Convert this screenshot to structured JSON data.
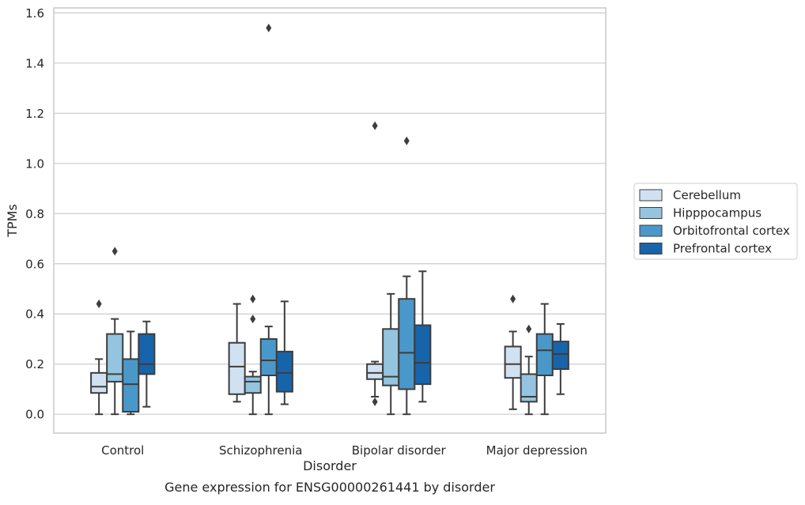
{
  "chart_data": {
    "type": "box",
    "title": "",
    "caption": "Gene expression for ENSG00000261441 by disorder",
    "xlabel": "Disorder",
    "ylabel": "TPMs",
    "ylim": [
      -0.075,
      1.62
    ],
    "yticks": [
      0.0,
      0.2,
      0.4,
      0.6,
      0.8,
      1.0,
      1.2,
      1.4,
      1.6
    ],
    "ytick_labels": [
      "0.0",
      "0.2",
      "0.4",
      "0.6",
      "0.8",
      "1.0",
      "1.2",
      "1.4",
      "1.6"
    ],
    "grid": "horizontal",
    "legend_position": "right",
    "categories": [
      "Control",
      "Schizophrenia",
      "Bipolar disorder",
      "Major depression"
    ],
    "series": [
      {
        "name": "Cerebellum",
        "color": "#d0e1f2",
        "boxes": [
          {
            "whisker_low": 0.0,
            "q1": 0.085,
            "median": 0.11,
            "q3": 0.165,
            "whisker_high": 0.22,
            "outliers": [
              0.44
            ]
          },
          {
            "whisker_low": 0.05,
            "q1": 0.08,
            "median": 0.19,
            "q3": 0.285,
            "whisker_high": 0.44,
            "outliers": []
          },
          {
            "whisker_low": 0.07,
            "q1": 0.14,
            "median": 0.165,
            "q3": 0.2,
            "whisker_high": 0.21,
            "outliers": [
              1.15,
              0.05
            ]
          },
          {
            "whisker_low": 0.02,
            "q1": 0.145,
            "median": 0.2,
            "q3": 0.27,
            "whisker_high": 0.33,
            "outliers": [
              0.46
            ]
          }
        ]
      },
      {
        "name": "Hipppocampus",
        "color": "#94c4df",
        "boxes": [
          {
            "whisker_low": 0.0,
            "q1": 0.13,
            "median": 0.16,
            "q3": 0.32,
            "whisker_high": 0.38,
            "outliers": [
              0.65
            ]
          },
          {
            "whisker_low": 0.0,
            "q1": 0.085,
            "median": 0.13,
            "q3": 0.15,
            "whisker_high": 0.17,
            "outliers": [
              0.46,
              0.38
            ]
          },
          {
            "whisker_low": 0.0,
            "q1": 0.115,
            "median": 0.15,
            "q3": 0.34,
            "whisker_high": 0.48,
            "outliers": []
          },
          {
            "whisker_low": 0.0,
            "q1": 0.05,
            "median": 0.07,
            "q3": 0.16,
            "whisker_high": 0.23,
            "outliers": [
              0.34
            ]
          }
        ]
      },
      {
        "name": "Orbitofrontal cortex",
        "color": "#4a98c9",
        "boxes": [
          {
            "whisker_low": 0.0,
            "q1": 0.01,
            "median": 0.12,
            "q3": 0.22,
            "whisker_high": 0.33,
            "outliers": []
          },
          {
            "whisker_low": 0.0,
            "q1": 0.155,
            "median": 0.215,
            "q3": 0.3,
            "whisker_high": 0.35,
            "outliers": [
              1.54
            ]
          },
          {
            "whisker_low": 0.0,
            "q1": 0.1,
            "median": 0.245,
            "q3": 0.46,
            "whisker_high": 0.55,
            "outliers": [
              1.09
            ]
          },
          {
            "whisker_low": 0.0,
            "q1": 0.155,
            "median": 0.255,
            "q3": 0.32,
            "whisker_high": 0.44,
            "outliers": []
          }
        ]
      },
      {
        "name": "Prefrontal cortex",
        "color": "#1764ab",
        "boxes": [
          {
            "whisker_low": 0.03,
            "q1": 0.16,
            "median": 0.2,
            "q3": 0.32,
            "whisker_high": 0.37,
            "outliers": []
          },
          {
            "whisker_low": 0.04,
            "q1": 0.09,
            "median": 0.165,
            "q3": 0.25,
            "whisker_high": 0.45,
            "outliers": []
          },
          {
            "whisker_low": 0.05,
            "q1": 0.12,
            "median": 0.205,
            "q3": 0.355,
            "whisker_high": 0.57,
            "outliers": []
          },
          {
            "whisker_low": 0.08,
            "q1": 0.18,
            "median": 0.24,
            "q3": 0.29,
            "whisker_high": 0.36,
            "outliers": []
          }
        ]
      }
    ]
  }
}
